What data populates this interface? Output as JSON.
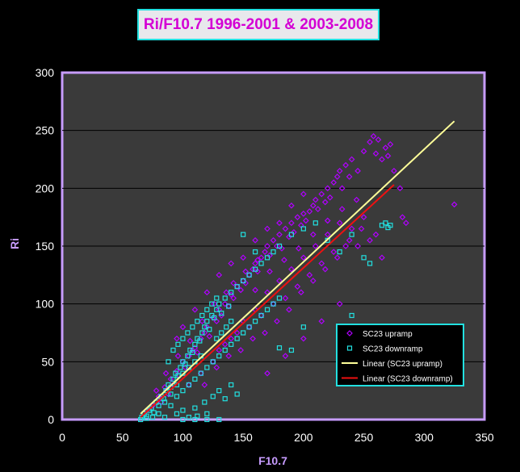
{
  "chart_data": {
    "type": "scatter",
    "title": "Ri/F10.7 1996-2001 & 2003-2008",
    "xlabel": "F10.7",
    "ylabel": "Ri",
    "xlim": [
      0,
      350
    ],
    "ylim": [
      0,
      300
    ],
    "xticks": [
      0,
      50,
      100,
      150,
      200,
      250,
      300,
      350
    ],
    "yticks": [
      0,
      50,
      100,
      150,
      200,
      250,
      300
    ],
    "grid": "horizontal",
    "legend_position": "bottom-right",
    "series": [
      {
        "name": "SC23 upramp",
        "marker": "diamond",
        "color": "#b000ff",
        "points": [
          [
            70,
            8
          ],
          [
            75,
            12
          ],
          [
            80,
            20
          ],
          [
            82,
            15
          ],
          [
            85,
            28
          ],
          [
            88,
            22
          ],
          [
            90,
            35
          ],
          [
            92,
            30
          ],
          [
            95,
            42
          ],
          [
            97,
            38
          ],
          [
            100,
            50
          ],
          [
            102,
            45
          ],
          [
            105,
            55
          ],
          [
            108,
            60
          ],
          [
            110,
            62
          ],
          [
            112,
            58
          ],
          [
            115,
            70
          ],
          [
            118,
            75
          ],
          [
            120,
            80
          ],
          [
            122,
            72
          ],
          [
            125,
            88
          ],
          [
            128,
            85
          ],
          [
            130,
            95
          ],
          [
            132,
            90
          ],
          [
            135,
            100
          ],
          [
            138,
            98
          ],
          [
            140,
            108
          ],
          [
            142,
            105
          ],
          [
            145,
            115
          ],
          [
            148,
            112
          ],
          [
            150,
            120
          ],
          [
            152,
            118
          ],
          [
            155,
            125
          ],
          [
            158,
            130
          ],
          [
            160,
            135
          ],
          [
            162,
            128
          ],
          [
            165,
            140
          ],
          [
            168,
            145
          ],
          [
            170,
            150
          ],
          [
            172,
            142
          ],
          [
            175,
            155
          ],
          [
            178,
            150
          ],
          [
            180,
            160
          ],
          [
            182,
            148
          ],
          [
            185,
            165
          ],
          [
            188,
            158
          ],
          [
            190,
            170
          ],
          [
            192,
            162
          ],
          [
            195,
            175
          ],
          [
            198,
            168
          ],
          [
            200,
            178
          ],
          [
            202,
            172
          ],
          [
            205,
            180
          ],
          [
            208,
            185
          ],
          [
            210,
            190
          ],
          [
            212,
            182
          ],
          [
            215,
            195
          ],
          [
            218,
            188
          ],
          [
            220,
            200
          ],
          [
            222,
            192
          ],
          [
            225,
            205
          ],
          [
            228,
            210
          ],
          [
            230,
            215
          ],
          [
            232,
            200
          ],
          [
            235,
            220
          ],
          [
            238,
            210
          ],
          [
            240,
            225
          ],
          [
            245,
            215
          ],
          [
            250,
            232
          ],
          [
            255,
            240
          ],
          [
            258,
            245
          ],
          [
            260,
            230
          ],
          [
            262,
            242
          ],
          [
            265,
            225
          ],
          [
            268,
            235
          ],
          [
            270,
            228
          ],
          [
            272,
            238
          ],
          [
            275,
            215
          ],
          [
            280,
            200
          ],
          [
            282,
            175
          ],
          [
            285,
            170
          ],
          [
            325,
            186
          ],
          [
            130,
            60
          ],
          [
            140,
            70
          ],
          [
            150,
            85
          ],
          [
            160,
            95
          ],
          [
            170,
            110
          ],
          [
            180,
            120
          ],
          [
            190,
            130
          ],
          [
            200,
            140
          ],
          [
            210,
            150
          ],
          [
            220,
            160
          ],
          [
            230,
            170
          ],
          [
            240,
            165
          ],
          [
            250,
            175
          ],
          [
            260,
            160
          ],
          [
            150,
            140
          ],
          [
            160,
            155
          ],
          [
            170,
            165
          ],
          [
            180,
            170
          ],
          [
            190,
            185
          ],
          [
            200,
            195
          ],
          [
            120,
            110
          ],
          [
            130,
            125
          ],
          [
            140,
            135
          ],
          [
            110,
            95
          ],
          [
            100,
            80
          ],
          [
            95,
            70
          ],
          [
            125,
            50
          ],
          [
            135,
            65
          ],
          [
            145,
            75
          ],
          [
            155,
            80
          ],
          [
            165,
            90
          ],
          [
            175,
            100
          ],
          [
            185,
            105
          ],
          [
            195,
            115
          ],
          [
            205,
            125
          ],
          [
            215,
            135
          ],
          [
            225,
            145
          ],
          [
            235,
            150
          ],
          [
            245,
            150
          ],
          [
            255,
            155
          ],
          [
            265,
            140
          ],
          [
            105,
            30
          ],
          [
            115,
            40
          ],
          [
            118,
            30
          ],
          [
            128,
            45
          ],
          [
            138,
            55
          ],
          [
            148,
            60
          ],
          [
            158,
            70
          ],
          [
            168,
            75
          ],
          [
            178,
            85
          ],
          [
            188,
            95
          ],
          [
            198,
            110
          ],
          [
            208,
            120
          ],
          [
            218,
            130
          ],
          [
            228,
            140
          ],
          [
            238,
            155
          ],
          [
            248,
            165
          ],
          [
            170,
            40
          ],
          [
            185,
            55
          ],
          [
            200,
            70
          ],
          [
            215,
            85
          ],
          [
            230,
            100
          ],
          [
            160,
            112
          ],
          [
            172,
            128
          ],
          [
            184,
            138
          ],
          [
            196,
            148
          ],
          [
            208,
            160
          ],
          [
            220,
            172
          ],
          [
            232,
            182
          ],
          [
            244,
            190
          ],
          [
            142,
            118
          ],
          [
            152,
            128
          ],
          [
            162,
            138
          ],
          [
            136,
            110
          ],
          [
            126,
            100
          ],
          [
            116,
            85
          ],
          [
            106,
            68
          ],
          [
            96,
            55
          ],
          [
            86,
            40
          ],
          [
            78,
            25
          ]
        ]
      },
      {
        "name": "SC23 downramp",
        "marker": "square",
        "color": "#22e0e0",
        "points": [
          [
            66,
            2
          ],
          [
            68,
            5
          ],
          [
            70,
            3
          ],
          [
            72,
            8
          ],
          [
            74,
            10
          ],
          [
            76,
            6
          ],
          [
            78,
            15
          ],
          [
            80,
            12
          ],
          [
            82,
            20
          ],
          [
            84,
            18
          ],
          [
            86,
            25
          ],
          [
            88,
            30
          ],
          [
            90,
            28
          ],
          [
            92,
            35
          ],
          [
            94,
            40
          ],
          [
            96,
            38
          ],
          [
            98,
            45
          ],
          [
            100,
            50
          ],
          [
            102,
            48
          ],
          [
            104,
            55
          ],
          [
            106,
            60
          ],
          [
            108,
            58
          ],
          [
            110,
            65
          ],
          [
            112,
            70
          ],
          [
            114,
            68
          ],
          [
            116,
            75
          ],
          [
            118,
            80
          ],
          [
            120,
            85
          ],
          [
            122,
            78
          ],
          [
            124,
            90
          ],
          [
            126,
            88
          ],
          [
            128,
            95
          ],
          [
            130,
            100
          ],
          [
            132,
            92
          ],
          [
            135,
            105
          ],
          [
            138,
            98
          ],
          [
            140,
            110
          ],
          [
            145,
            115
          ],
          [
            150,
            120
          ],
          [
            155,
            125
          ],
          [
            160,
            130
          ],
          [
            165,
            135
          ],
          [
            170,
            140
          ],
          [
            175,
            145
          ],
          [
            180,
            150
          ],
          [
            190,
            160
          ],
          [
            200,
            165
          ],
          [
            210,
            170
          ],
          [
            220,
            155
          ],
          [
            230,
            145
          ],
          [
            240,
            160
          ],
          [
            250,
            140
          ],
          [
            255,
            135
          ],
          [
            265,
            168
          ],
          [
            268,
            170
          ],
          [
            270,
            166
          ],
          [
            272,
            168
          ],
          [
            240,
            90
          ],
          [
            200,
            80
          ],
          [
            190,
            60
          ],
          [
            180,
            62
          ],
          [
            150,
            160
          ],
          [
            160,
            145
          ],
          [
            85,
            2
          ],
          [
            95,
            5
          ],
          [
            100,
            8
          ],
          [
            105,
            2
          ],
          [
            110,
            10
          ],
          [
            112,
            3
          ],
          [
            118,
            15
          ],
          [
            120,
            5
          ],
          [
            125,
            20
          ],
          [
            130,
            25
          ],
          [
            135,
            18
          ],
          [
            140,
            30
          ],
          [
            145,
            22
          ],
          [
            90,
            12
          ],
          [
            95,
            20
          ],
          [
            100,
            25
          ],
          [
            105,
            30
          ],
          [
            110,
            35
          ],
          [
            115,
            40
          ],
          [
            120,
            45
          ],
          [
            125,
            50
          ],
          [
            130,
            55
          ],
          [
            135,
            60
          ],
          [
            140,
            65
          ],
          [
            145,
            70
          ],
          [
            150,
            75
          ],
          [
            155,
            80
          ],
          [
            160,
            85
          ],
          [
            165,
            90
          ],
          [
            170,
            95
          ],
          [
            175,
            100
          ],
          [
            180,
            105
          ],
          [
            80,
            5
          ],
          [
            75,
            2
          ],
          [
            70,
            1
          ],
          [
            65,
            0
          ],
          [
            100,
            0
          ],
          [
            110,
            0
          ],
          [
            120,
            0
          ],
          [
            130,
            0
          ],
          [
            88,
            50
          ],
          [
            92,
            60
          ],
          [
            96,
            65
          ],
          [
            100,
            70
          ],
          [
            104,
            75
          ],
          [
            108,
            80
          ],
          [
            112,
            85
          ],
          [
            116,
            90
          ],
          [
            120,
            95
          ],
          [
            124,
            100
          ],
          [
            128,
            105
          ],
          [
            100,
            40
          ],
          [
            105,
            45
          ],
          [
            110,
            50
          ],
          [
            115,
            55
          ],
          [
            95,
            30
          ],
          [
            90,
            22
          ],
          [
            85,
            15
          ],
          [
            128,
            70
          ],
          [
            132,
            75
          ],
          [
            136,
            80
          ],
          [
            140,
            85
          ]
        ]
      }
    ],
    "trendlines": [
      {
        "name": "Linear (SC23 upramp)",
        "color": "#ffff99",
        "x": [
          65,
          325
        ],
        "y": [
          5,
          258
        ]
      },
      {
        "name": "Linear (SC23 downramp)",
        "color": "#ee1111",
        "x": [
          65,
          275
        ],
        "y": [
          2,
          203
        ]
      }
    ]
  }
}
